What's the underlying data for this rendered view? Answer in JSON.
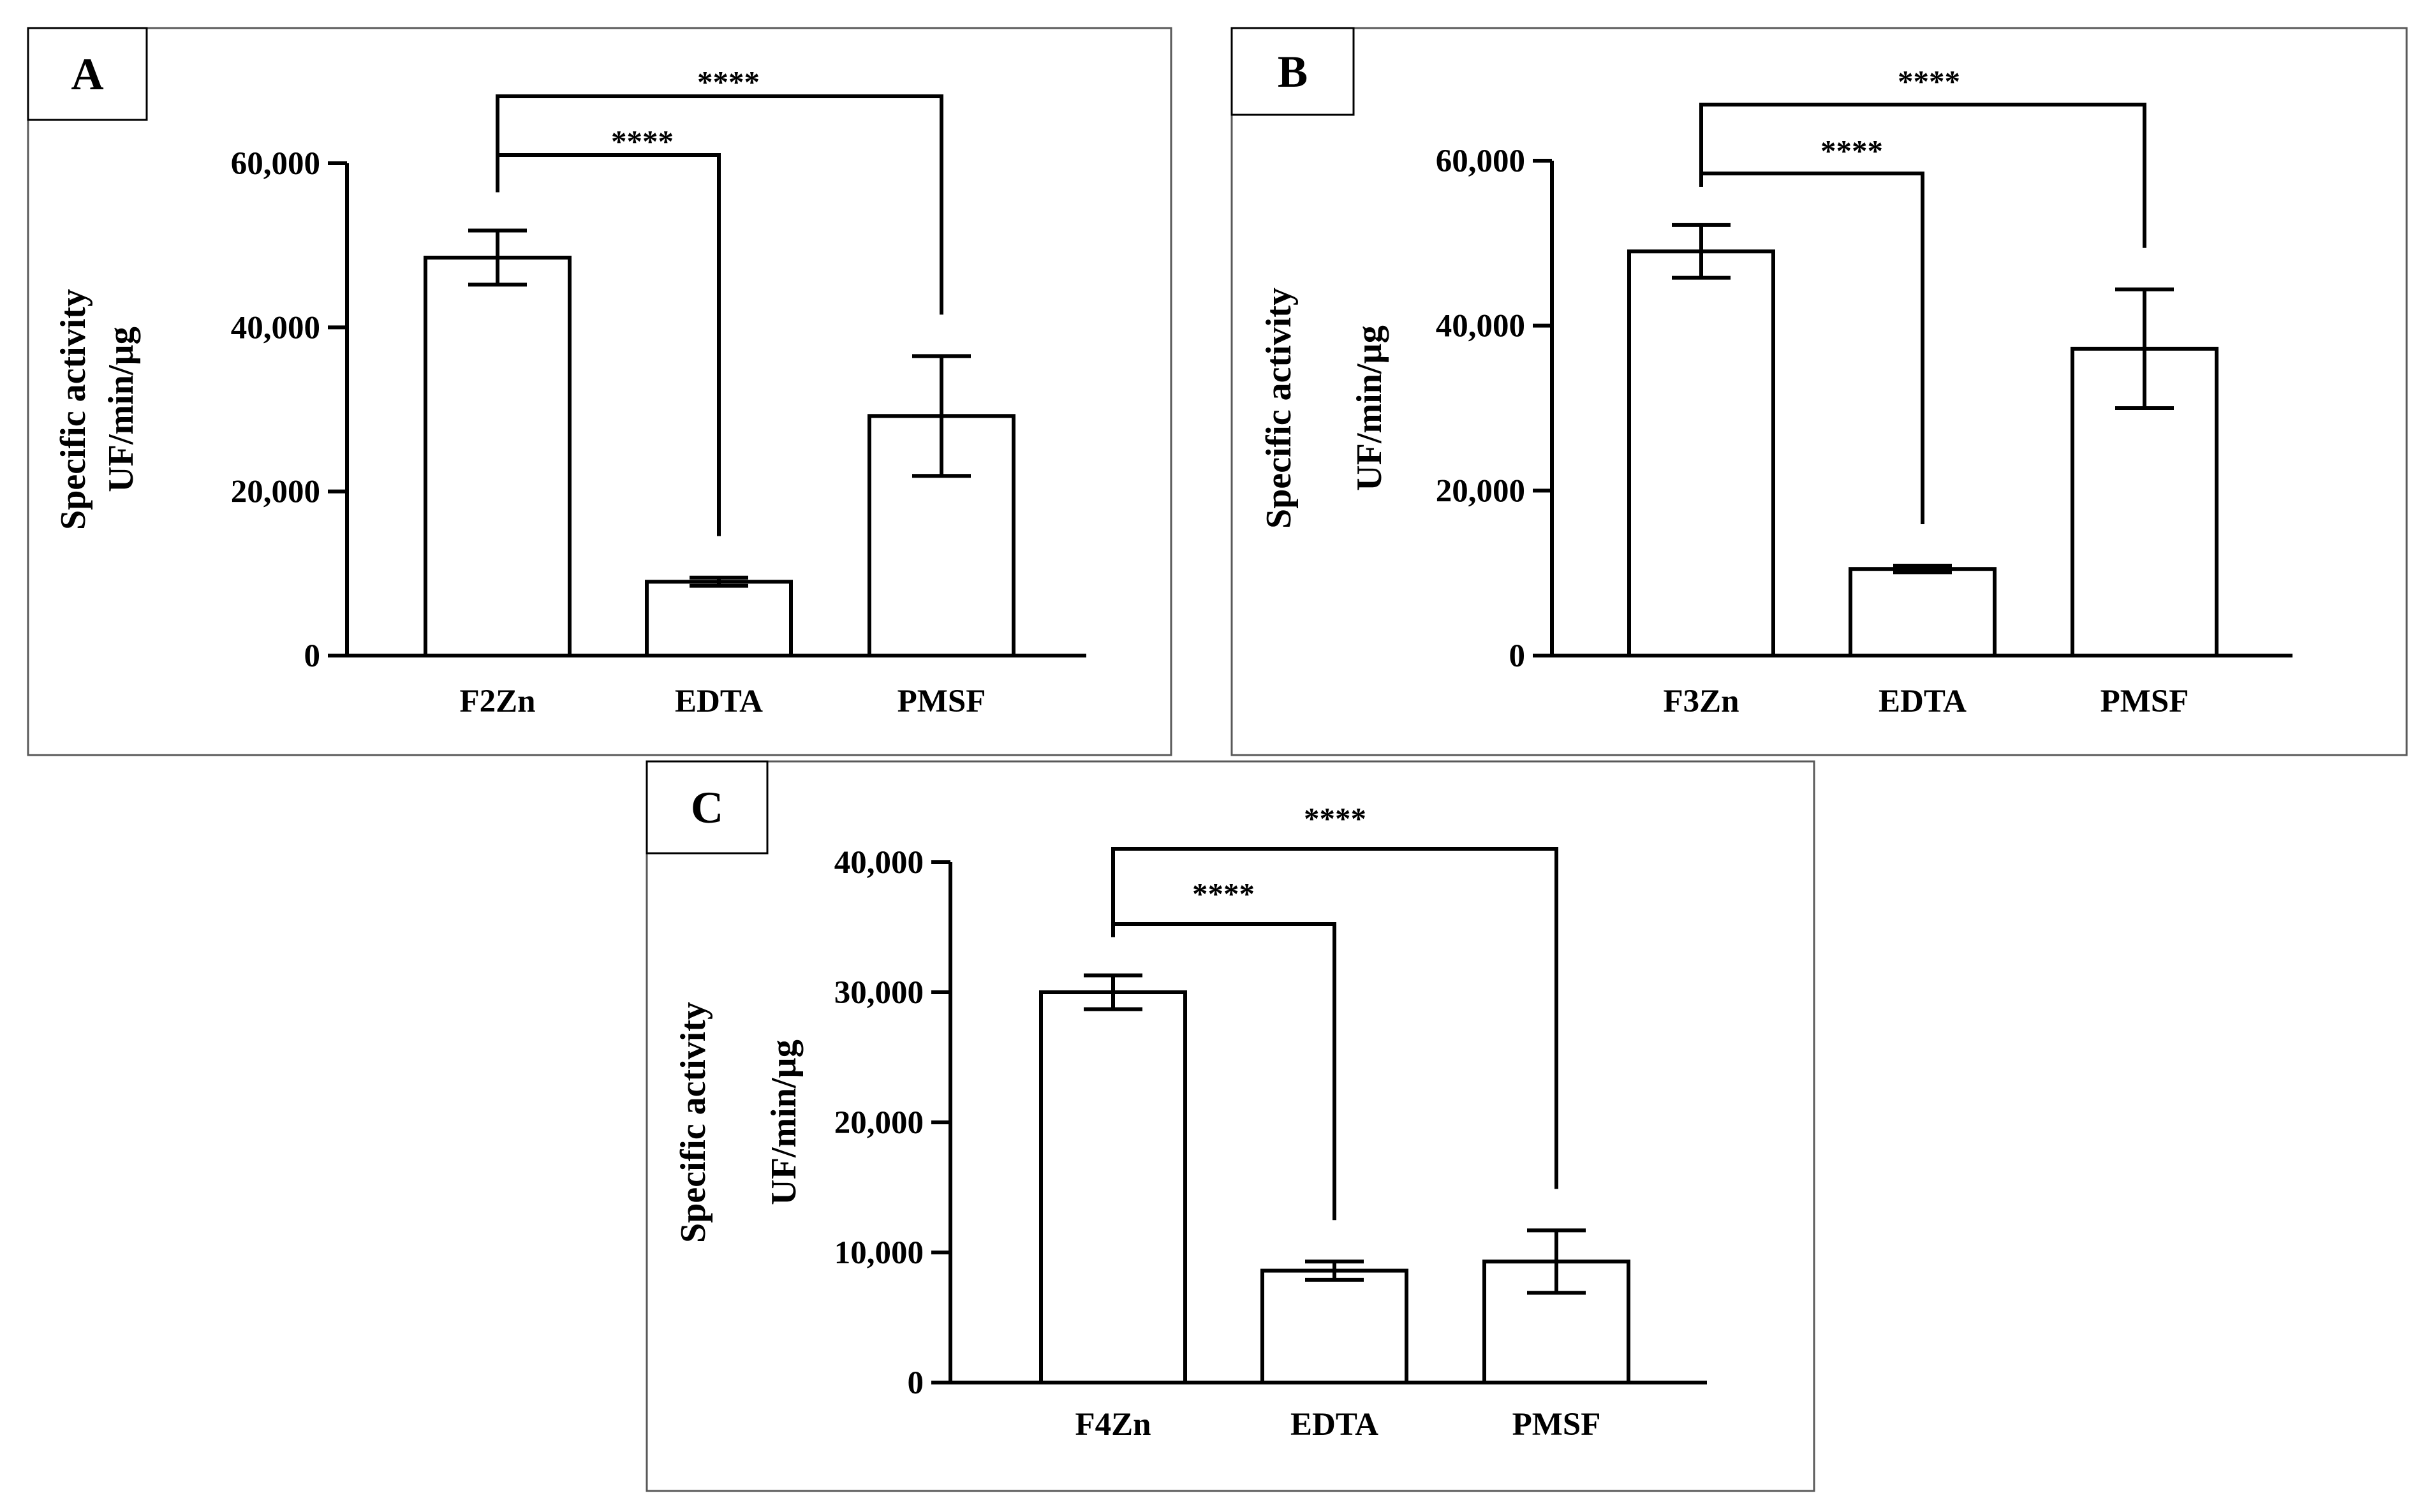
{
  "colors": {
    "ink": "#000000",
    "frame": "#595959",
    "bar_fill": "#ffffff",
    "background": "#ffffff"
  },
  "chart_data": [
    {
      "panel": "A",
      "type": "bar",
      "ylabel_line1": "Specific activity",
      "ylabel_line2": "UF/min/µg",
      "categories": [
        "F2Zn",
        "EDTA",
        "PMSF"
      ],
      "values": [
        48500,
        9000,
        29200
      ],
      "errors": [
        3300,
        500,
        7300
      ],
      "ylim": [
        0,
        60000
      ],
      "yticks": [
        0,
        20000,
        40000,
        60000
      ],
      "ytick_labels": [
        "0",
        "20,000",
        "40,000",
        "60,000"
      ],
      "significance": [
        {
          "from": 0,
          "to": 1,
          "label": "****"
        },
        {
          "from": 0,
          "to": 2,
          "label": "****"
        }
      ]
    },
    {
      "panel": "B",
      "type": "bar",
      "ylabel_line1": "Specific activity",
      "ylabel_line2": "UF/min/µg",
      "categories": [
        "F3Zn",
        "EDTA",
        "PMSF"
      ],
      "values": [
        49000,
        10500,
        37200
      ],
      "errors": [
        3200,
        400,
        7200
      ],
      "ylim": [
        0,
        60000
      ],
      "yticks": [
        0,
        20000,
        40000,
        60000
      ],
      "ytick_labels": [
        "0",
        "20,000",
        "40,000",
        "60,000"
      ],
      "significance": [
        {
          "from": 0,
          "to": 1,
          "label": "****"
        },
        {
          "from": 0,
          "to": 2,
          "label": "****"
        }
      ]
    },
    {
      "panel": "C",
      "type": "bar",
      "ylabel_line1": "Specific activity",
      "ylabel_line2": "UF/min/µg",
      "categories": [
        "F4Zn",
        "EDTA",
        "PMSF"
      ],
      "values": [
        30000,
        8600,
        9300
      ],
      "errors": [
        1300,
        700,
        2400
      ],
      "ylim": [
        0,
        40000
      ],
      "yticks": [
        0,
        10000,
        20000,
        30000,
        40000
      ],
      "ytick_labels": [
        "0",
        "10,000",
        "20,000",
        "30,000",
        "40,000"
      ],
      "significance": [
        {
          "from": 0,
          "to": 1,
          "label": "****"
        },
        {
          "from": 0,
          "to": 2,
          "label": "****"
        }
      ]
    }
  ]
}
